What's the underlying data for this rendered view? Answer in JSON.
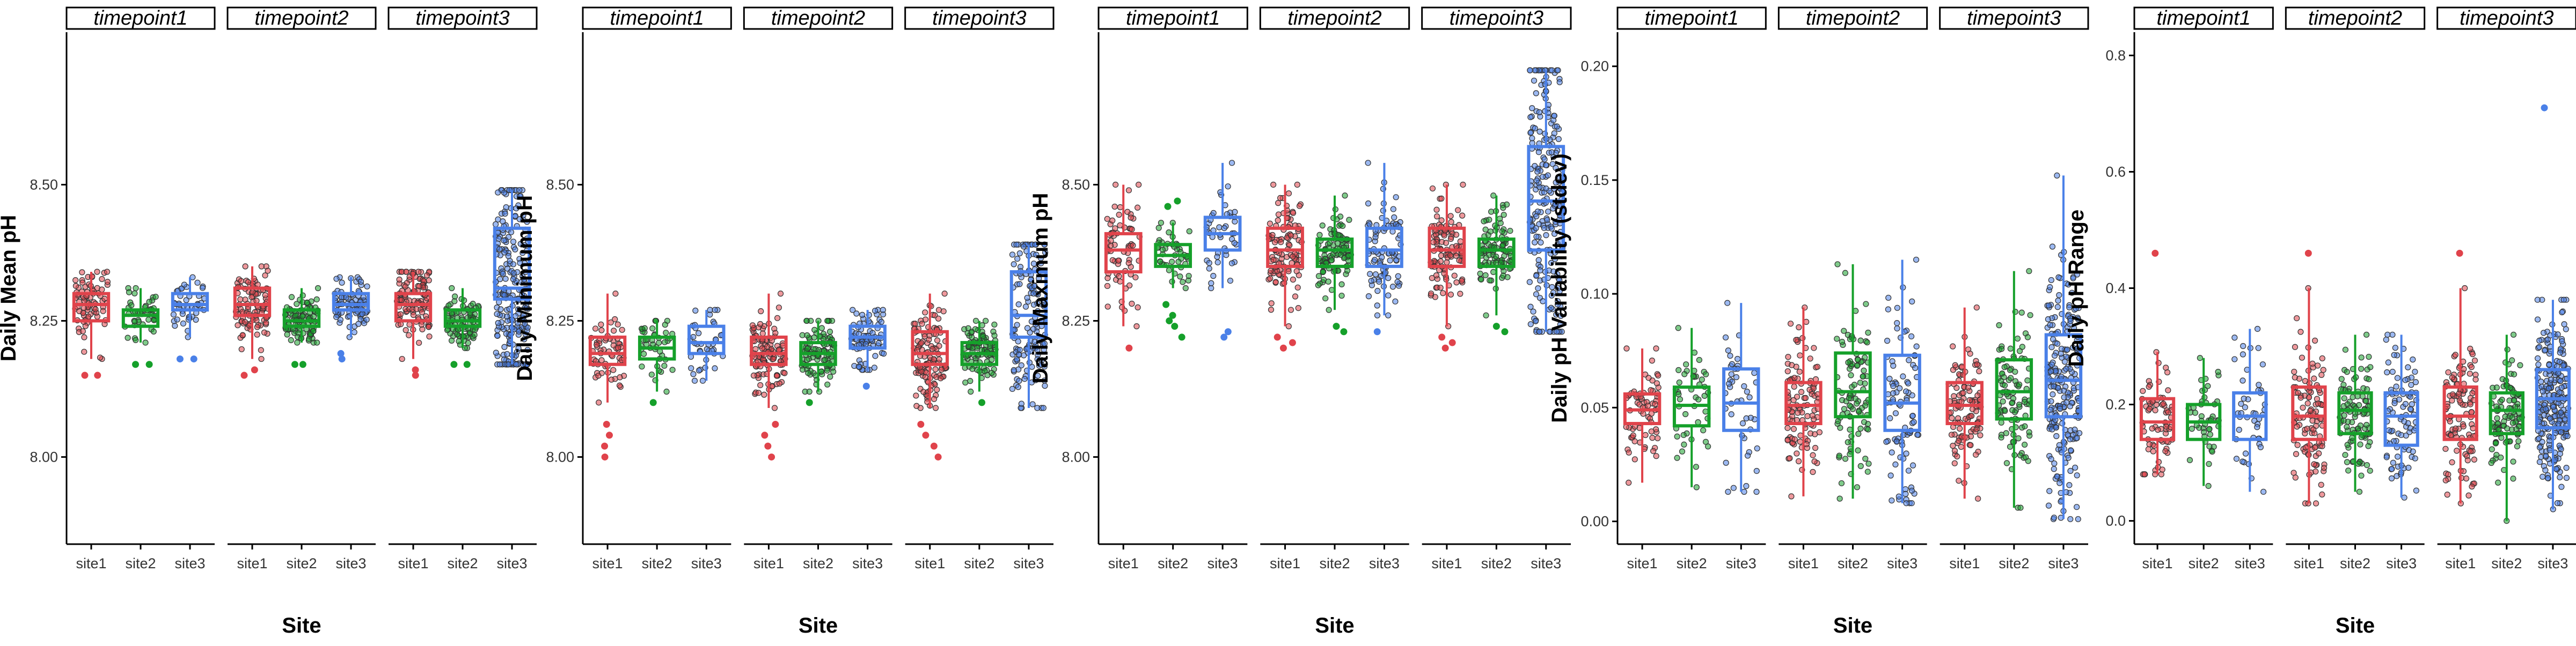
{
  "facets": [
    "timepoint1",
    "timepoint2",
    "timepoint3"
  ],
  "xlabel": "Site",
  "colors": {
    "site1": "#e0434b",
    "site2": "#15a02a",
    "site3": "#4a80e8",
    "axis": "#000000",
    "strip_fill": "#ffffff"
  },
  "chart_data": [
    {
      "type": "box",
      "ylabel": "Daily Mean pH",
      "ylim": [
        7.84,
        8.78
      ],
      "yticks": [
        "8.00",
        "8.25",
        "8.50"
      ],
      "categories": [
        "site1",
        "site2",
        "site3"
      ],
      "legend": "none",
      "grid": false,
      "series": [
        {
          "facet": "timepoint1",
          "boxes": [
            {
              "site": "site1",
              "q1": 8.25,
              "median": 8.28,
              "q3": 8.3,
              "whisker_low": 8.18,
              "whisker_high": 8.34,
              "n": 80,
              "outliers": [
                8.15,
                8.15
              ]
            },
            {
              "site": "site2",
              "q1": 8.24,
              "median": 8.26,
              "q3": 8.27,
              "whisker_low": 8.21,
              "whisker_high": 8.31,
              "n": 45,
              "outliers": [
                8.17,
                8.17
              ]
            },
            {
              "site": "site3",
              "q1": 8.27,
              "median": 8.28,
              "q3": 8.3,
              "whisker_low": 8.22,
              "whisker_high": 8.33,
              "n": 45,
              "outliers": [
                8.18,
                8.18
              ]
            }
          ]
        },
        {
          "facet": "timepoint2",
          "boxes": [
            {
              "site": "site1",
              "q1": 8.26,
              "median": 8.28,
              "q3": 8.31,
              "whisker_low": 8.18,
              "whisker_high": 8.35,
              "n": 100,
              "outliers": [
                8.15,
                8.16
              ]
            },
            {
              "site": "site2",
              "q1": 8.24,
              "median": 8.25,
              "q3": 8.27,
              "whisker_low": 8.21,
              "whisker_high": 8.31,
              "n": 95,
              "outliers": [
                8.17,
                8.17
              ]
            },
            {
              "site": "site3",
              "q1": 8.27,
              "median": 8.28,
              "q3": 8.3,
              "whisker_low": 8.22,
              "whisker_high": 8.33,
              "n": 85,
              "outliers": [
                8.18,
                8.19
              ]
            }
          ]
        },
        {
          "facet": "timepoint3",
          "boxes": [
            {
              "site": "site1",
              "q1": 8.25,
              "median": 8.28,
              "q3": 8.3,
              "whisker_low": 8.18,
              "whisker_high": 8.34,
              "n": 110,
              "outliers": [
                8.15,
                8.16
              ]
            },
            {
              "site": "site2",
              "q1": 8.24,
              "median": 8.25,
              "q3": 8.27,
              "whisker_low": 8.2,
              "whisker_high": 8.31,
              "n": 90,
              "outliers": [
                8.17,
                8.17
              ]
            },
            {
              "site": "site3",
              "q1": 8.29,
              "median": 8.31,
              "q3": 8.42,
              "whisker_low": 8.17,
              "whisker_high": 8.49,
              "n": 230,
              "outliers": []
            }
          ]
        }
      ]
    },
    {
      "type": "box",
      "ylabel": "Daily Minimum pH",
      "ylim": [
        7.84,
        8.78
      ],
      "yticks": [
        "8.00",
        "8.25",
        "8.50"
      ],
      "categories": [
        "site1",
        "site2",
        "site3"
      ],
      "legend": "none",
      "grid": false,
      "series": [
        {
          "facet": "timepoint1",
          "boxes": [
            {
              "site": "site1",
              "q1": 8.17,
              "median": 8.19,
              "q3": 8.22,
              "whisker_low": 8.1,
              "whisker_high": 8.3,
              "n": 60,
              "outliers": [
                8.06,
                8.04,
                8.02,
                8.0
              ]
            },
            {
              "site": "site2",
              "q1": 8.18,
              "median": 8.2,
              "q3": 8.22,
              "whisker_low": 8.12,
              "whisker_high": 8.25,
              "n": 45,
              "outliers": [
                8.1
              ]
            },
            {
              "site": "site3",
              "q1": 8.19,
              "median": 8.21,
              "q3": 8.24,
              "whisker_low": 8.14,
              "whisker_high": 8.27,
              "n": 40,
              "outliers": []
            }
          ]
        },
        {
          "facet": "timepoint2",
          "boxes": [
            {
              "site": "site1",
              "q1": 8.17,
              "median": 8.19,
              "q3": 8.22,
              "whisker_low": 8.09,
              "whisker_high": 8.3,
              "n": 110,
              "outliers": [
                8.06,
                8.04,
                8.02,
                8.0
              ]
            },
            {
              "site": "site2",
              "q1": 8.17,
              "median": 8.19,
              "q3": 8.21,
              "whisker_low": 8.12,
              "whisker_high": 8.25,
              "n": 100,
              "outliers": [
                8.1
              ]
            },
            {
              "site": "site3",
              "q1": 8.2,
              "median": 8.22,
              "q3": 8.24,
              "whisker_low": 8.16,
              "whisker_high": 8.27,
              "n": 80,
              "outliers": [
                8.13
              ]
            }
          ]
        },
        {
          "facet": "timepoint3",
          "boxes": [
            {
              "site": "site1",
              "q1": 8.17,
              "median": 8.19,
              "q3": 8.23,
              "whisker_low": 8.09,
              "whisker_high": 8.3,
              "n": 120,
              "outliers": [
                8.06,
                8.04,
                8.02,
                8.0
              ]
            },
            {
              "site": "site2",
              "q1": 8.17,
              "median": 8.19,
              "q3": 8.21,
              "whisker_low": 8.12,
              "whisker_high": 8.25,
              "n": 100,
              "outliers": [
                8.1
              ]
            },
            {
              "site": "site3",
              "q1": 8.22,
              "median": 8.26,
              "q3": 8.34,
              "whisker_low": 8.09,
              "whisker_high": 8.39,
              "n": 150,
              "outliers": []
            }
          ]
        }
      ]
    },
    {
      "type": "box",
      "ylabel": "Daily Maximum pH",
      "ylim": [
        7.84,
        8.78
      ],
      "yticks": [
        "8.00",
        "8.25",
        "8.50"
      ],
      "categories": [
        "site1",
        "site2",
        "site3"
      ],
      "legend": "none",
      "grid": false,
      "series": [
        {
          "facet": "timepoint1",
          "boxes": [
            {
              "site": "site1",
              "q1": 8.34,
              "median": 8.38,
              "q3": 8.41,
              "whisker_low": 8.24,
              "whisker_high": 8.5,
              "n": 70,
              "outliers": [
                8.2
              ]
            },
            {
              "site": "site2",
              "q1": 8.35,
              "median": 8.37,
              "q3": 8.39,
              "whisker_low": 8.31,
              "whisker_high": 8.43,
              "n": 45,
              "outliers": [
                8.47,
                8.46,
                8.28,
                8.26,
                8.25,
                8.24,
                8.22
              ]
            },
            {
              "site": "site3",
              "q1": 8.38,
              "median": 8.41,
              "q3": 8.44,
              "whisker_low": 8.31,
              "whisker_high": 8.54,
              "n": 45,
              "outliers": [
                8.23,
                8.22
              ]
            }
          ]
        },
        {
          "facet": "timepoint2",
          "boxes": [
            {
              "site": "site1",
              "q1": 8.35,
              "median": 8.38,
              "q3": 8.42,
              "whisker_low": 8.24,
              "whisker_high": 8.5,
              "n": 110,
              "outliers": [
                8.22,
                8.21,
                8.2
              ]
            },
            {
              "site": "site2",
              "q1": 8.35,
              "median": 8.38,
              "q3": 8.4,
              "whisker_low": 8.27,
              "whisker_high": 8.48,
              "n": 100,
              "outliers": [
                8.24,
                8.23
              ]
            },
            {
              "site": "site3",
              "q1": 8.35,
              "median": 8.38,
              "q3": 8.42,
              "whisker_low": 8.26,
              "whisker_high": 8.54,
              "n": 90,
              "outliers": [
                8.23
              ]
            }
          ]
        },
        {
          "facet": "timepoint3",
          "boxes": [
            {
              "site": "site1",
              "q1": 8.35,
              "median": 8.38,
              "q3": 8.42,
              "whisker_low": 8.24,
              "whisker_high": 8.5,
              "n": 110,
              "outliers": [
                8.22,
                8.21,
                8.2
              ]
            },
            {
              "site": "site2",
              "q1": 8.35,
              "median": 8.38,
              "q3": 8.4,
              "whisker_low": 8.26,
              "whisker_high": 8.48,
              "n": 100,
              "outliers": [
                8.24,
                8.23
              ]
            },
            {
              "site": "site3",
              "q1": 8.38,
              "median": 8.47,
              "q3": 8.57,
              "whisker_low": 8.23,
              "whisker_high": 8.71,
              "n": 230,
              "outliers": []
            }
          ]
        }
      ]
    },
    {
      "type": "box",
      "ylabel": "Daily pH Variability (stdev)",
      "ylim": [
        -0.01,
        0.215
      ],
      "yticks": [
        "0.00",
        "0.05",
        "0.10",
        "0.15",
        "0.20"
      ],
      "categories": [
        "site1",
        "site2",
        "site3"
      ],
      "legend": "none",
      "grid": false,
      "series": [
        {
          "facet": "timepoint1",
          "boxes": [
            {
              "site": "site1",
              "q1": 0.043,
              "median": 0.049,
              "q3": 0.056,
              "whisker_low": 0.017,
              "whisker_high": 0.076,
              "n": 70,
              "outliers": []
            },
            {
              "site": "site2",
              "q1": 0.042,
              "median": 0.051,
              "q3": 0.059,
              "whisker_low": 0.015,
              "whisker_high": 0.085,
              "n": 45,
              "outliers": []
            },
            {
              "site": "site3",
              "q1": 0.04,
              "median": 0.052,
              "q3": 0.067,
              "whisker_low": 0.013,
              "whisker_high": 0.096,
              "n": 45,
              "outliers": []
            }
          ]
        },
        {
          "facet": "timepoint2",
          "boxes": [
            {
              "site": "site1",
              "q1": 0.043,
              "median": 0.051,
              "q3": 0.061,
              "whisker_low": 0.011,
              "whisker_high": 0.094,
              "n": 110,
              "outliers": []
            },
            {
              "site": "site2",
              "q1": 0.046,
              "median": 0.057,
              "q3": 0.074,
              "whisker_low": 0.01,
              "whisker_high": 0.113,
              "n": 100,
              "outliers": []
            },
            {
              "site": "site3",
              "q1": 0.04,
              "median": 0.052,
              "q3": 0.073,
              "whisker_low": 0.008,
              "whisker_high": 0.115,
              "n": 90,
              "outliers": []
            }
          ]
        },
        {
          "facet": "timepoint3",
          "boxes": [
            {
              "site": "site1",
              "q1": 0.043,
              "median": 0.051,
              "q3": 0.061,
              "whisker_low": 0.01,
              "whisker_high": 0.094,
              "n": 110,
              "outliers": []
            },
            {
              "site": "site2",
              "q1": 0.045,
              "median": 0.057,
              "q3": 0.071,
              "whisker_low": 0.006,
              "whisker_high": 0.11,
              "n": 100,
              "outliers": []
            },
            {
              "site": "site3",
              "q1": 0.046,
              "median": 0.062,
              "q3": 0.082,
              "whisker_low": 0.001,
              "whisker_high": 0.152,
              "n": 230,
              "outliers": []
            }
          ]
        }
      ]
    },
    {
      "type": "box",
      "ylabel": "Daily pH Range",
      "ylim": [
        -0.04,
        0.84
      ],
      "yticks": [
        "0.0",
        "0.2",
        "0.4",
        "0.6",
        "0.8"
      ],
      "categories": [
        "site1",
        "site2",
        "site3"
      ],
      "legend": "none",
      "grid": false,
      "series": [
        {
          "facet": "timepoint1",
          "boxes": [
            {
              "site": "site1",
              "q1": 0.14,
              "median": 0.17,
              "q3": 0.21,
              "whisker_low": 0.08,
              "whisker_high": 0.29,
              "n": 70,
              "outliers": [
                0.46
              ]
            },
            {
              "site": "site2",
              "q1": 0.14,
              "median": 0.17,
              "q3": 0.2,
              "whisker_low": 0.06,
              "whisker_high": 0.28,
              "n": 45,
              "outliers": []
            },
            {
              "site": "site3",
              "q1": 0.14,
              "median": 0.18,
              "q3": 0.22,
              "whisker_low": 0.05,
              "whisker_high": 0.33,
              "n": 45,
              "outliers": []
            }
          ]
        },
        {
          "facet": "timepoint2",
          "boxes": [
            {
              "site": "site1",
              "q1": 0.14,
              "median": 0.18,
              "q3": 0.23,
              "whisker_low": 0.03,
              "whisker_high": 0.4,
              "n": 110,
              "outliers": [
                0.46
              ]
            },
            {
              "site": "site2",
              "q1": 0.15,
              "median": 0.19,
              "q3": 0.22,
              "whisker_low": 0.05,
              "whisker_high": 0.32,
              "n": 100,
              "outliers": []
            },
            {
              "site": "site3",
              "q1": 0.13,
              "median": 0.18,
              "q3": 0.22,
              "whisker_low": 0.04,
              "whisker_high": 0.32,
              "n": 90,
              "outliers": []
            }
          ]
        },
        {
          "facet": "timepoint3",
          "boxes": [
            {
              "site": "site1",
              "q1": 0.14,
              "median": 0.18,
              "q3": 0.23,
              "whisker_low": 0.03,
              "whisker_high": 0.4,
              "n": 110,
              "outliers": [
                0.46
              ]
            },
            {
              "site": "site2",
              "q1": 0.15,
              "median": 0.19,
              "q3": 0.22,
              "whisker_low": 0.0,
              "whisker_high": 0.32,
              "n": 100,
              "outliers": []
            },
            {
              "site": "site3",
              "q1": 0.16,
              "median": 0.21,
              "q3": 0.26,
              "whisker_low": 0.02,
              "whisker_high": 0.38,
              "n": 230,
              "outliers": [
                0.71
              ]
            }
          ]
        }
      ]
    }
  ]
}
